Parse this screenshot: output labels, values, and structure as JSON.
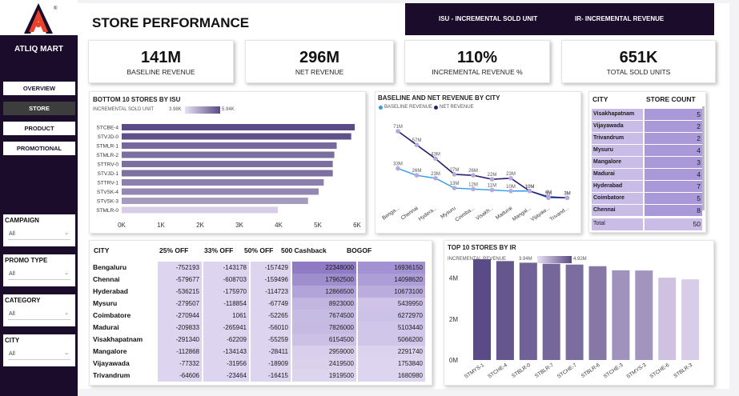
{
  "brand": "ATLIQ MART",
  "nav": [
    {
      "label": "OVERVIEW",
      "active": false
    },
    {
      "label": "STORE",
      "active": true
    },
    {
      "label": "PRODUCT",
      "active": false
    },
    {
      "label": "PROMOTIONAL",
      "active": false
    }
  ],
  "filters": [
    {
      "title": "CAMPAIGN",
      "value": "All"
    },
    {
      "title": "PROMO TYPE",
      "value": "All"
    },
    {
      "title": "CATEGORY",
      "value": "All"
    },
    {
      "title": "CITY",
      "value": "All"
    }
  ],
  "page_title": "STORE PERFORMANCE",
  "legend_bar": {
    "isu": "ISU - INCREMENTAL SOLD UNIT",
    "ir": "IR- INCREMENTAL REVENUE"
  },
  "kpis": [
    {
      "value": "141M",
      "label": "BASELINE REVENUE"
    },
    {
      "value": "296M",
      "label": "NET REVENUE"
    },
    {
      "value": "110%",
      "label": "INCREMENTAL REVENUE %"
    },
    {
      "value": "651K",
      "label": "TOTAL SOLD UNITS"
    }
  ],
  "colors": {
    "accent": "#5a4a85",
    "sidebar": "#1c0c2b",
    "bar_dark": "#5a4a85",
    "bar_light": "#d8cde8",
    "line_net": "#2a1f6e",
    "line_base": "#2e9bea"
  },
  "bottom10": {
    "title": "BOTTOM 10 STORES BY ISU",
    "legend_title": "INCREMENTAL SOLD UNIT",
    "legend_min": "3.98K",
    "legend_max": "5.94K"
  },
  "baseline_net": {
    "title": "BASELINE AND NET REVENUE BY CITY",
    "legend_base": "BASELINE REVENUE",
    "legend_net": "NET REVENUE"
  },
  "store_count": {
    "city_header": "CITY",
    "count_header": "STORE COUNT",
    "rows": [
      {
        "city": "Visakhapatnam",
        "count": "5"
      },
      {
        "city": "Vijayawada",
        "count": "2"
      },
      {
        "city": "Trivandrum",
        "count": "2"
      },
      {
        "city": "Mysuru",
        "count": "4"
      },
      {
        "city": "Mangalore",
        "count": "3"
      },
      {
        "city": "Madurai",
        "count": "4"
      },
      {
        "city": "Hyderabad",
        "count": "7"
      },
      {
        "city": "Coimbatore",
        "count": "5"
      },
      {
        "city": "Chennai",
        "count": "8"
      }
    ],
    "total_label": "Total",
    "total_value": "50"
  },
  "city_table": {
    "headers": [
      "CITY",
      "25% OFF",
      "33% OFF",
      "50% OFF",
      "500 Cashback",
      "BOGOF"
    ],
    "rows": [
      {
        "city": "Bengaluru",
        "v": [
          "-752193",
          "-143178",
          "-157429",
          "22348000",
          "16936150"
        ]
      },
      {
        "city": "Chennai",
        "v": [
          "-579677",
          "-608703",
          "-159496",
          "17962500",
          "14098620"
        ]
      },
      {
        "city": "Hyderabad",
        "v": [
          "-536215",
          "-175970",
          "-114723",
          "12866500",
          "10673100"
        ]
      },
      {
        "city": "Mysuru",
        "v": [
          "-279507",
          "-118854",
          "-67749",
          "8923000",
          "5439950"
        ]
      },
      {
        "city": "Coimbatore",
        "v": [
          "-270944",
          "1061",
          "-52265",
          "7674500",
          "6272970"
        ]
      },
      {
        "city": "Madurai",
        "v": [
          "-209833",
          "-265941",
          "-56010",
          "7826000",
          "5103440"
        ]
      },
      {
        "city": "Visakhapatnam",
        "v": [
          "-291340",
          "-62209",
          "-55259",
          "6154500",
          "5066200"
        ]
      },
      {
        "city": "Mangalore",
        "v": [
          "-112868",
          "-134143",
          "-28411",
          "2959000",
          "2291740"
        ]
      },
      {
        "city": "Vijayawada",
        "v": [
          "-77332",
          "-31956",
          "-18909",
          "2419500",
          "1753840"
        ]
      },
      {
        "city": "Trivandrum",
        "v": [
          "-64606",
          "-23464",
          "-16415",
          "1919500",
          "1680980"
        ]
      }
    ]
  },
  "top10": {
    "title": "TOP 10 STORES BY IR",
    "legend_title": "INCREMENTAL REVENUE",
    "legend_min": "3.94M",
    "legend_max": "4.92M"
  },
  "chart_data": [
    {
      "type": "bar",
      "orientation": "horizontal",
      "title": "BOTTOM 10 STORES BY ISU",
      "categories": [
        "STCBE-4",
        "STVJD-0",
        "STMLR-1",
        "STMLR-2",
        "STTRV-0",
        "STVJD-1",
        "STTRV-1",
        "STVSK-4",
        "STVSK-3",
        "STMLR-0"
      ],
      "values": [
        5940,
        5850,
        5480,
        5420,
        5380,
        5380,
        5150,
        5020,
        4750,
        3980
      ],
      "xticks": [
        "0K",
        "1K",
        "2K",
        "3K",
        "4K",
        "5K",
        "6K"
      ],
      "xlim": [
        0,
        6000
      ]
    },
    {
      "type": "line",
      "title": "BASELINE AND NET REVENUE BY CITY",
      "categories": [
        "Bengaluru",
        "Chennai",
        "Hyderabad",
        "Mysuru",
        "Coimbatore",
        "Visakhapatnam",
        "Madurai",
        "Mangalore",
        "Vijayawada",
        "Trivandrum"
      ],
      "category_labels": [
        "Benga...",
        "Chennai",
        "Hydera...",
        "Mysuru",
        "Coimba...",
        "Visakh...",
        "Madurai",
        "Mangal...",
        "Vijayaw...",
        "Trivand..."
      ],
      "series": [
        {
          "name": "BASELINE REVENUE",
          "values": [
            33,
            26,
            23,
            13,
            12,
            11,
            10,
            10,
            3,
            3
          ],
          "labels": [
            "33M",
            "26M",
            "23M",
            "13M",
            "12M",
            "11M",
            "10M",
            "10M",
            "3M",
            "3M"
          ]
        },
        {
          "name": "NET REVENUE",
          "values": [
            71,
            57,
            43,
            27,
            26,
            22,
            23,
            10,
            4,
            3
          ],
          "labels": [
            "71M",
            "57M",
            "43M",
            "27M",
            "26M",
            "22M",
            "23M",
            "10M",
            "4M",
            "3M"
          ]
        }
      ],
      "ylim": [
        0,
        80
      ]
    },
    {
      "type": "bar",
      "title": "TOP 10 STORES BY IR",
      "categories": [
        "STMYS-1",
        "STCHE-4",
        "STBLR-0",
        "STBLR-7",
        "STCHE-7",
        "STBLR-6",
        "STCHE-3",
        "STMYS-3",
        "STCHE-6",
        "STBLR-3"
      ],
      "values": [
        4.92,
        4.83,
        4.75,
        4.7,
        4.66,
        4.58,
        4.38,
        4.37,
        4.02,
        3.94
      ],
      "yticks": [
        "0M",
        "2M",
        "4M"
      ],
      "ylim": [
        0,
        5
      ]
    }
  ]
}
